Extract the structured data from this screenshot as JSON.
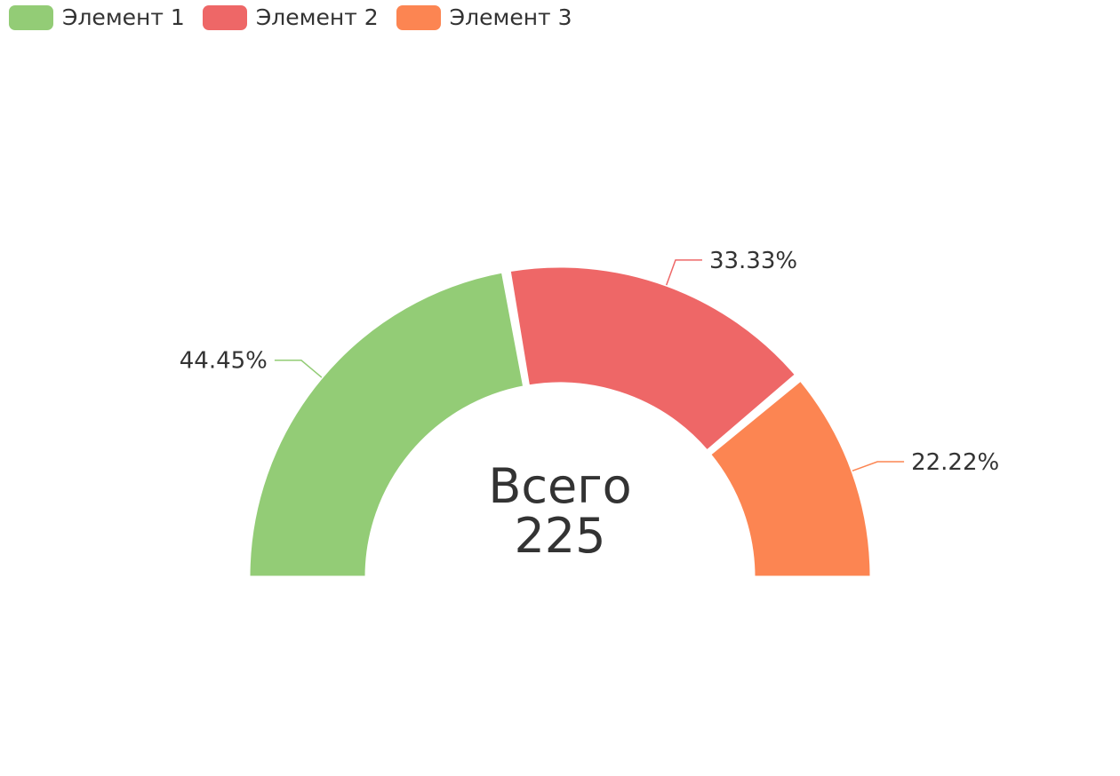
{
  "chart_data": {
    "type": "pie",
    "variant": "half-donut",
    "categories": [
      "Элемент 1",
      "Элемент 2",
      "Элемент 3"
    ],
    "values": [
      100,
      75,
      50
    ],
    "percent_labels": [
      "44.45%",
      "33.33%",
      "22.22%"
    ],
    "colors": [
      "#93cc76",
      "#ee6767",
      "#fc8552"
    ],
    "legend": "top-left",
    "center": {
      "title": "Всего",
      "value": "225"
    }
  }
}
